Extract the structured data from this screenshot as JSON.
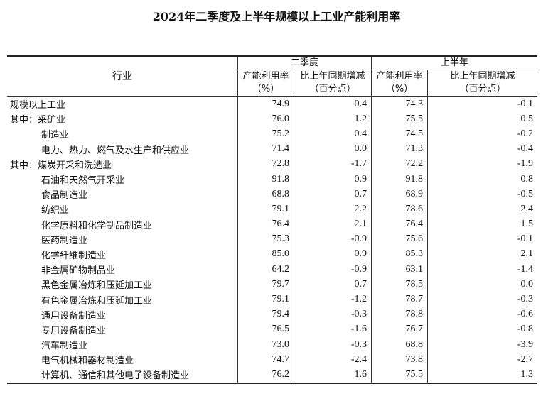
{
  "title": "2024年二季度及上半年规模以上工业产能利用率",
  "header": {
    "industry": "行业",
    "q2": "二季度",
    "h1": "上半年",
    "rate": "产能利用率",
    "rate_unit": "（%）",
    "change": "比上年同期增减",
    "change_unit": "（百分点）"
  },
  "rows": [
    {
      "name": "规模以上工业",
      "q2_rate": "74.9",
      "q2_chg": "0.4",
      "h1_rate": "74.3",
      "h1_chg": "-0.1",
      "sub": false
    },
    {
      "name": "其中：采矿业",
      "q2_rate": "76.0",
      "q2_chg": "1.2",
      "h1_rate": "75.5",
      "h1_chg": "0.5",
      "sub": false
    },
    {
      "name": "制造业",
      "q2_rate": "75.2",
      "q2_chg": "0.4",
      "h1_rate": "74.5",
      "h1_chg": "-0.2",
      "sub": true
    },
    {
      "name": "电力、热力、燃气及水生产和供应业",
      "q2_rate": "71.4",
      "q2_chg": "0.0",
      "h1_rate": "71.3",
      "h1_chg": "-0.4",
      "sub": true
    },
    {
      "name": "其中：煤炭开采和洗选业",
      "q2_rate": "72.8",
      "q2_chg": "-1.7",
      "h1_rate": "72.2",
      "h1_chg": "-1.9",
      "sub": false
    },
    {
      "name": "石油和天然气开采业",
      "q2_rate": "91.8",
      "q2_chg": "0.9",
      "h1_rate": "91.8",
      "h1_chg": "0.8",
      "sub": true
    },
    {
      "name": "食品制造业",
      "q2_rate": "68.8",
      "q2_chg": "0.7",
      "h1_rate": "68.9",
      "h1_chg": "-0.5",
      "sub": true
    },
    {
      "name": "纺织业",
      "q2_rate": "79.1",
      "q2_chg": "2.2",
      "h1_rate": "78.6",
      "h1_chg": "2.4",
      "sub": true
    },
    {
      "name": "化学原料和化学制品制造业",
      "q2_rate": "76.4",
      "q2_chg": "2.1",
      "h1_rate": "76.4",
      "h1_chg": "1.5",
      "sub": true
    },
    {
      "name": "医药制造业",
      "q2_rate": "75.3",
      "q2_chg": "-0.9",
      "h1_rate": "75.6",
      "h1_chg": "-0.1",
      "sub": true
    },
    {
      "name": "化学纤维制造业",
      "q2_rate": "85.0",
      "q2_chg": "0.9",
      "h1_rate": "85.3",
      "h1_chg": "2.1",
      "sub": true
    },
    {
      "name": "非金属矿物制品业",
      "q2_rate": "64.2",
      "q2_chg": "-0.9",
      "h1_rate": "63.1",
      "h1_chg": "-1.4",
      "sub": true
    },
    {
      "name": "黑色金属冶炼和压延加工业",
      "q2_rate": "79.7",
      "q2_chg": "0.7",
      "h1_rate": "78.5",
      "h1_chg": "0.0",
      "sub": true
    },
    {
      "name": "有色金属冶炼和压延加工业",
      "q2_rate": "79.1",
      "q2_chg": "-1.2",
      "h1_rate": "78.7",
      "h1_chg": "-0.3",
      "sub": true
    },
    {
      "name": "通用设备制造业",
      "q2_rate": "79.4",
      "q2_chg": "-0.3",
      "h1_rate": "78.8",
      "h1_chg": "-0.6",
      "sub": true
    },
    {
      "name": "专用设备制造业",
      "q2_rate": "76.5",
      "q2_chg": "-1.6",
      "h1_rate": "76.7",
      "h1_chg": "-0.8",
      "sub": true
    },
    {
      "name": "汽车制造业",
      "q2_rate": "73.0",
      "q2_chg": "-0.3",
      "h1_rate": "68.8",
      "h1_chg": "-3.9",
      "sub": true
    },
    {
      "name": "电气机械和器材制造业",
      "q2_rate": "74.7",
      "q2_chg": "-2.4",
      "h1_rate": "73.8",
      "h1_chg": "-2.7",
      "sub": true
    },
    {
      "name": "计算机、通信和其他电子设备制造业",
      "q2_rate": "76.2",
      "q2_chg": "1.6",
      "h1_rate": "75.5",
      "h1_chg": "1.3",
      "sub": true
    }
  ]
}
